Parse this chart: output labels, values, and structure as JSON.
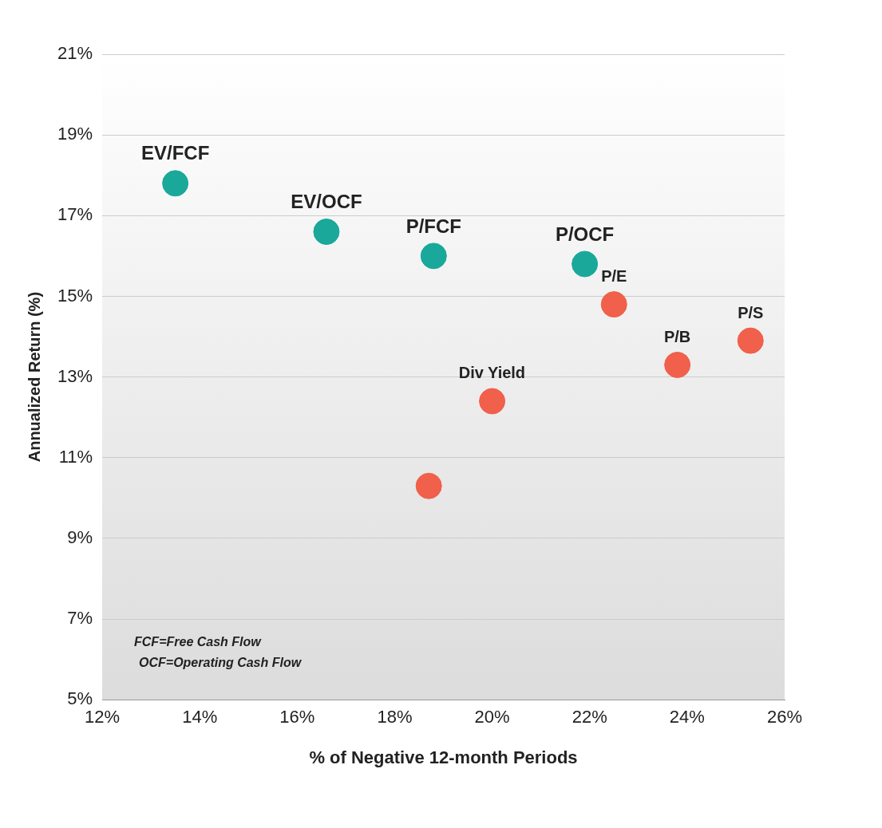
{
  "chart_data": {
    "type": "scatter",
    "xlabel": "% of Negative 12-month Periods",
    "ylabel": "Annualized Return (%)",
    "series": [
      {
        "color": "#1aa89a",
        "x": [
          13.5,
          16.6,
          18.8,
          21.9
        ],
        "values": [
          17.8,
          16.6,
          16.0,
          15.8
        ]
      },
      {
        "color": "#f0604a",
        "x": [
          22.5,
          25.3,
          23.8,
          20.0,
          18.7
        ],
        "values": [
          14.8,
          13.9,
          13.3,
          12.4,
          10.3
        ]
      }
    ],
    "xlim": [
      12,
      26
    ],
    "xticks": [
      {
        "value": 12,
        "label": "12%"
      },
      {
        "value": 14,
        "label": "14%"
      },
      {
        "value": 16,
        "label": "16%"
      },
      {
        "value": 18,
        "label": "18%"
      },
      {
        "value": 20,
        "label": "20%"
      },
      {
        "value": 22,
        "label": "22%"
      },
      {
        "value": 24,
        "label": "24%"
      },
      {
        "value": 26,
        "label": "26%"
      }
    ],
    "ylim": [
      5,
      21
    ],
    "yticks": [
      {
        "value": 5,
        "label": "5%"
      },
      {
        "value": 7,
        "label": "7%"
      },
      {
        "value": 9,
        "label": "9%"
      },
      {
        "value": 11,
        "label": "11%"
      },
      {
        "value": 13,
        "label": "13%"
      },
      {
        "value": 15,
        "label": "15%"
      },
      {
        "value": 17,
        "label": "17%"
      },
      {
        "value": 19,
        "label": "19%"
      },
      {
        "value": 21,
        "label": "21%"
      }
    ],
    "grid": "y",
    "legend": false,
    "marker": "circle",
    "annotations": [
      {
        "text": "EV/FCF",
        "x": 13.5,
        "y": 17.8
      },
      {
        "text": "EV/OCF",
        "x": 16.6,
        "y": 16.6
      },
      {
        "text": "P/FCF",
        "x": 18.8,
        "y": 16.0
      },
      {
        "text": "P/OCF",
        "x": 21.9,
        "y": 15.8
      },
      {
        "text": "P/E",
        "x": 22.5,
        "y": 14.8
      },
      {
        "text": "P/S",
        "x": 25.3,
        "y": 13.9
      },
      {
        "text": "P/B",
        "x": 23.8,
        "y": 13.3
      },
      {
        "text": "Div Yield",
        "x": 20.0,
        "y": 12.4
      },
      "FCF=Free Cash Flow",
      "OCF=Operating Cash Flow"
    ]
  }
}
